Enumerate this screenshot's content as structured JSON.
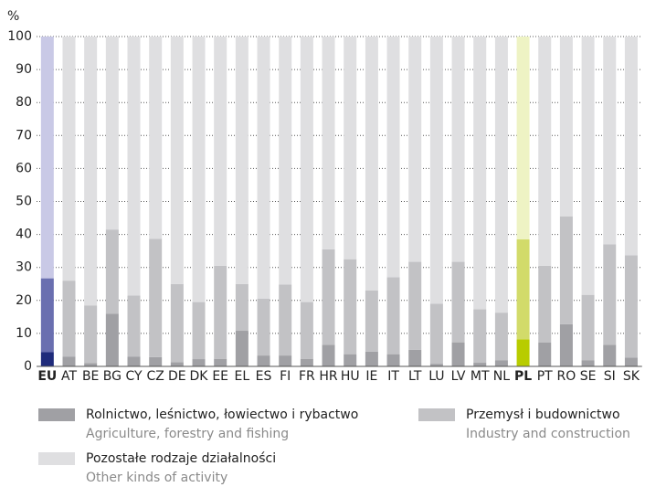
{
  "chart_data": {
    "type": "stacked_bar",
    "y_label": "%",
    "categories": [
      "EU",
      "AT",
      "BE",
      "BG",
      "CY",
      "CZ",
      "DE",
      "DK",
      "EE",
      "EL",
      "ES",
      "FI",
      "FR",
      "HR",
      "HU",
      "IE",
      "IT",
      "LT",
      "LU",
      "LV",
      "MT",
      "NL",
      "PL",
      "PT",
      "RO",
      "SE",
      "SI",
      "SK"
    ],
    "series": [
      {
        "name": "Rolnictwo, leśnictwo, łowiectwo i rybactwo",
        "name_en": "Agriculture, forestry and fishing",
        "color": "#a0a0a4",
        "highlight_colors": {
          "EU": "#1f2b7b",
          "PL": "#b8cc00"
        },
        "values": [
          4.3,
          3,
          1,
          16,
          3,
          2.8,
          1.3,
          2.2,
          2.3,
          10.8,
          3.3,
          3.3,
          2.3,
          6.5,
          3.7,
          4.5,
          3.7,
          5,
          0.8,
          7.3,
          1.1,
          1.8,
          8.2,
          7.2,
          12.8,
          1.8,
          6.5,
          2.7
        ]
      },
      {
        "name": "Przemysł i budownictwo",
        "name_en": "Industry and construction",
        "color": "#c2c2c5",
        "highlight_colors": {
          "EU": "#6a6fb0",
          "PL": "#d2db6a"
        },
        "values": [
          22.4,
          23,
          17.5,
          25.5,
          18.5,
          35.9,
          23.7,
          17.3,
          28.2,
          14.2,
          17.2,
          21.5,
          17.2,
          29,
          28.8,
          18.5,
          23.3,
          26.7,
          18.2,
          24.4,
          16.2,
          14.5,
          30.3,
          23.3,
          32.7,
          19.9,
          30.5,
          31
        ]
      },
      {
        "name": "Pozostałe rodzaje działalności",
        "name_en": "Other kinds of activity",
        "color": "#dfdfe1",
        "highlight_colors": {
          "EU": "#c9c9e6",
          "PL": "#eef3c4"
        },
        "values": [
          73.3,
          74,
          81.5,
          58.5,
          78.5,
          61.3,
          75,
          80.5,
          69.5,
          75,
          79.5,
          75.2,
          80.5,
          64.5,
          67.5,
          77,
          73,
          68.3,
          81,
          68.3,
          82.7,
          83.7,
          61.5,
          69.5,
          54.5,
          78.3,
          63,
          66.3
        ]
      }
    ],
    "ylim": [
      0,
      100
    ],
    "yticks": [
      0,
      10,
      20,
      30,
      40,
      50,
      60,
      70,
      80,
      90,
      100
    ],
    "grid": true
  }
}
